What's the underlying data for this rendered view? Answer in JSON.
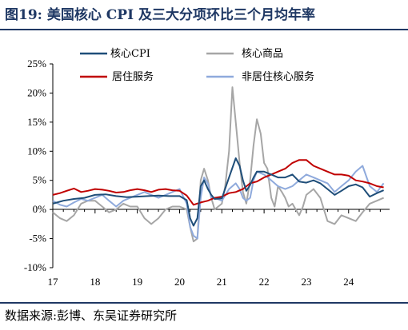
{
  "title": "图19:  美国核心 CPI 及三大分项环比三个月均年率",
  "source": "数据来源:彭博、东吴证券研究所",
  "chart_data": {
    "type": "line",
    "title": "图19:  美国核心 CPI 及三大分项环比三个月均年率",
    "xlabel": "",
    "ylabel": "",
    "x_ticks": [
      "17",
      "18",
      "19",
      "20",
      "21",
      "22",
      "23",
      "24"
    ],
    "y_ticks": [
      "25%",
      "20%",
      "15%",
      "10%",
      "5%",
      "0%",
      "-5%",
      "-10%"
    ],
    "ylim": [
      -10,
      25
    ],
    "xlim": [
      2017.0,
      2024.97
    ],
    "grid": false,
    "legend_position": "top",
    "series": [
      {
        "name": "核心CPI",
        "color": "#1f4e79",
        "x": [
          2017.0,
          2017.25,
          2017.5,
          2017.75,
          2018.0,
          2018.25,
          2018.5,
          2018.75,
          2019.0,
          2019.25,
          2019.5,
          2019.75,
          2020.0,
          2020.17,
          2020.25,
          2020.33,
          2020.42,
          2020.5,
          2020.58,
          2020.67,
          2020.75,
          2020.83,
          2021.0,
          2021.17,
          2021.33,
          2021.42,
          2021.5,
          2021.58,
          2021.67,
          2021.75,
          2021.83,
          2022.0,
          2022.17,
          2022.33,
          2022.5,
          2022.67,
          2022.83,
          2023.0,
          2023.17,
          2023.33,
          2023.5,
          2023.67,
          2023.83,
          2024.0,
          2024.17,
          2024.33,
          2024.5,
          2024.67,
          2024.83
        ],
        "y": [
          1.0,
          1.5,
          1.8,
          2.0,
          2.5,
          2.6,
          2.3,
          2.1,
          2.2,
          2.3,
          2.4,
          2.3,
          2.3,
          1.6,
          -1.5,
          -2.8,
          -1.5,
          4.0,
          5.0,
          3.5,
          2.5,
          1.8,
          1.9,
          5.5,
          8.8,
          7.5,
          5.0,
          3.2,
          4.2,
          5.5,
          6.5,
          6.5,
          6.0,
          5.5,
          5.5,
          6.0,
          4.8,
          4.6,
          5.0,
          4.5,
          3.5,
          2.5,
          3.2,
          4.0,
          4.3,
          3.8,
          2.2,
          2.8,
          3.3
        ]
      },
      {
        "name": "核心商品",
        "color": "#a6a6a6",
        "x": [
          2017.0,
          2017.17,
          2017.33,
          2017.5,
          2017.67,
          2017.83,
          2018.0,
          2018.17,
          2018.33,
          2018.5,
          2018.67,
          2018.83,
          2019.0,
          2019.17,
          2019.33,
          2019.5,
          2019.67,
          2019.83,
          2020.0,
          2020.17,
          2020.25,
          2020.33,
          2020.42,
          2020.5,
          2020.58,
          2020.67,
          2020.75,
          2020.83,
          2021.0,
          2021.08,
          2021.17,
          2021.25,
          2021.33,
          2021.42,
          2021.5,
          2021.58,
          2021.67,
          2021.75,
          2021.83,
          2021.92,
          2022.0,
          2022.08,
          2022.17,
          2022.25,
          2022.33,
          2022.42,
          2022.5,
          2022.58,
          2022.67,
          2022.75,
          2022.83,
          2022.92,
          2023.0,
          2023.17,
          2023.33,
          2023.5,
          2023.67,
          2023.83,
          2024.0,
          2024.17,
          2024.33,
          2024.5,
          2024.67,
          2024.83
        ],
        "y": [
          -0.5,
          -1.5,
          -2.0,
          -1.0,
          1.0,
          1.5,
          1.5,
          0.5,
          -0.5,
          0.0,
          1.0,
          0.5,
          0.5,
          -1.5,
          -2.5,
          -1.5,
          0.0,
          0.5,
          0.5,
          0.0,
          -3.0,
          -5.5,
          -5.0,
          5.0,
          7.0,
          5.0,
          2.0,
          0.0,
          1.0,
          4.0,
          10.0,
          21.0,
          15.0,
          8.0,
          3.0,
          1.0,
          5.0,
          11.0,
          15.5,
          13.0,
          8.0,
          7.0,
          2.0,
          0.5,
          4.0,
          3.0,
          2.0,
          0.5,
          1.0,
          0.0,
          -1.0,
          0.5,
          2.5,
          3.5,
          2.0,
          -2.0,
          -2.5,
          -1.0,
          -1.5,
          -2.0,
          -0.5,
          1.0,
          1.5,
          2.0
        ]
      },
      {
        "name": "居住服务",
        "color": "#c00000",
        "x": [
          2017.0,
          2017.17,
          2017.33,
          2017.5,
          2017.67,
          2017.83,
          2018.0,
          2018.17,
          2018.33,
          2018.5,
          2018.67,
          2018.83,
          2019.0,
          2019.17,
          2019.33,
          2019.5,
          2019.67,
          2019.83,
          2020.0,
          2020.17,
          2020.33,
          2020.5,
          2020.67,
          2020.83,
          2021.0,
          2021.17,
          2021.33,
          2021.5,
          2021.67,
          2021.83,
          2022.0,
          2022.17,
          2022.33,
          2022.5,
          2022.67,
          2022.83,
          2023.0,
          2023.17,
          2023.33,
          2023.5,
          2023.67,
          2023.83,
          2024.0,
          2024.17,
          2024.33,
          2024.5,
          2024.67,
          2024.83
        ],
        "y": [
          2.5,
          2.8,
          3.2,
          3.6,
          3.0,
          3.2,
          3.5,
          3.4,
          3.2,
          2.9,
          3.0,
          3.3,
          3.5,
          3.3,
          3.0,
          3.4,
          3.5,
          3.3,
          3.2,
          2.4,
          0.8,
          1.2,
          1.5,
          2.0,
          2.2,
          2.8,
          3.0,
          3.5,
          4.5,
          4.8,
          5.5,
          6.0,
          6.5,
          7.0,
          8.0,
          8.5,
          8.5,
          7.5,
          7.0,
          6.5,
          6.0,
          6.0,
          5.8,
          5.0,
          4.8,
          4.5,
          4.0,
          3.8
        ]
      },
      {
        "name": "非居住核心服务",
        "color": "#8faadc",
        "x": [
          2017.0,
          2017.17,
          2017.33,
          2017.5,
          2017.67,
          2017.83,
          2018.0,
          2018.17,
          2018.33,
          2018.5,
          2018.67,
          2018.83,
          2019.0,
          2019.17,
          2019.33,
          2019.5,
          2019.67,
          2019.83,
          2020.0,
          2020.17,
          2020.25,
          2020.33,
          2020.42,
          2020.5,
          2020.58,
          2020.67,
          2020.75,
          2020.83,
          2021.0,
          2021.17,
          2021.33,
          2021.42,
          2021.5,
          2021.58,
          2021.67,
          2021.75,
          2021.83,
          2022.0,
          2022.17,
          2022.33,
          2022.5,
          2022.67,
          2022.83,
          2023.0,
          2023.17,
          2023.33,
          2023.5,
          2023.67,
          2023.83,
          2024.0,
          2024.17,
          2024.33,
          2024.5,
          2024.67,
          2024.83
        ],
        "y": [
          1.5,
          0.8,
          0.5,
          1.2,
          1.8,
          1.5,
          2.0,
          2.5,
          1.5,
          0.5,
          1.5,
          2.0,
          2.5,
          3.0,
          2.5,
          2.0,
          2.5,
          3.0,
          3.5,
          1.0,
          -3.0,
          -4.5,
          -5.0,
          2.0,
          5.5,
          4.5,
          2.0,
          2.0,
          1.5,
          3.5,
          4.5,
          3.5,
          2.0,
          1.5,
          2.0,
          5.0,
          6.5,
          6.0,
          5.0,
          4.0,
          3.5,
          4.0,
          5.0,
          6.0,
          5.5,
          5.0,
          4.5,
          3.0,
          4.0,
          5.0,
          6.5,
          7.5,
          4.0,
          3.0,
          4.5
        ]
      }
    ]
  }
}
